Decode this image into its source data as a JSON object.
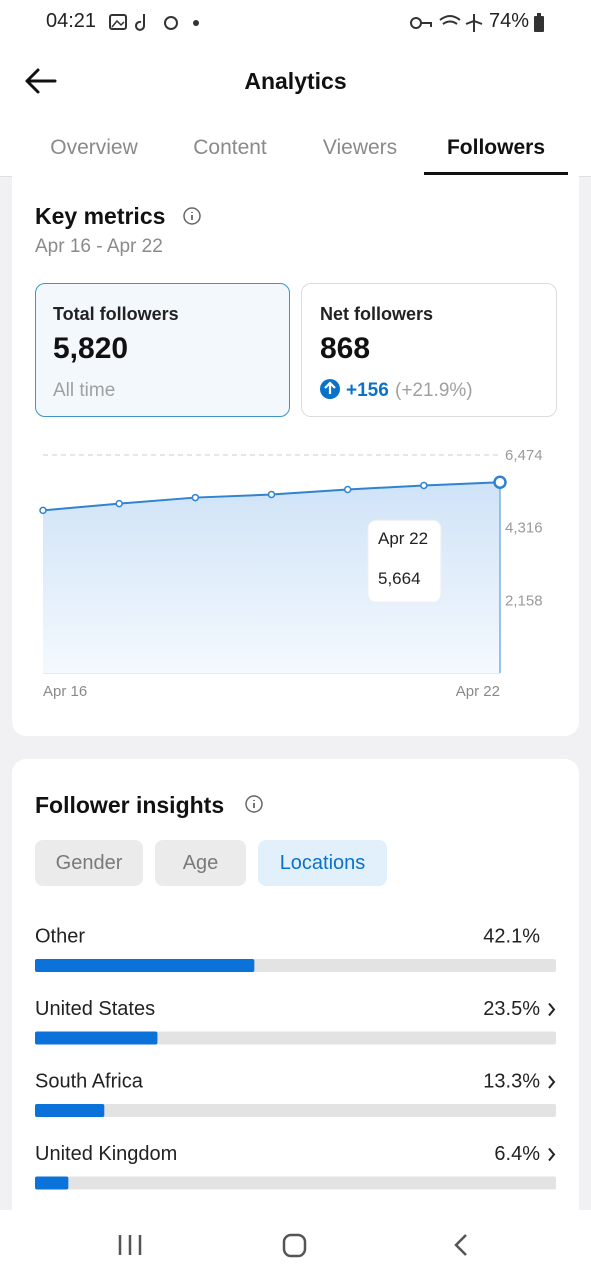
{
  "status_bar": {
    "time": "04:21",
    "battery": "74%"
  },
  "header": {
    "title": "Analytics"
  },
  "tabs": [
    {
      "label": "Overview",
      "active": false
    },
    {
      "label": "Content",
      "active": false
    },
    {
      "label": "Viewers",
      "active": false
    },
    {
      "label": "Followers",
      "active": true
    }
  ],
  "key_metrics": {
    "title": "Key metrics",
    "date_range": "Apr 16 - Apr 22",
    "total_followers": {
      "label": "Total followers",
      "value": "5,820",
      "note": "All time"
    },
    "net_followers": {
      "label": "Net followers",
      "value": "868",
      "change": "+156",
      "change_pct": "(+21.9%)"
    }
  },
  "chart_data": {
    "type": "line",
    "x": [
      "Apr 16",
      null,
      null,
      null,
      null,
      null,
      "Apr 22"
    ],
    "values": [
      4830,
      5030,
      5210,
      5300,
      5450,
      5570,
      5664
    ],
    "value_labels": [
      null,
      null,
      null,
      null,
      null,
      null,
      "5,664"
    ],
    "color": "#2f83d0",
    "ylim": [
      0,
      6474
    ],
    "yticks": [
      {
        "value": 2158,
        "label": "2,158"
      },
      {
        "value": 4316,
        "label": "4,316"
      },
      {
        "value": 6474,
        "label": "6,474"
      }
    ],
    "grid": true
  },
  "follower_insights": {
    "title": "Follower insights",
    "filters": [
      {
        "label": "Gender",
        "selected": false
      },
      {
        "label": "Age",
        "selected": false
      },
      {
        "label": "Locations",
        "selected": true
      }
    ],
    "locations": {
      "type": "bar",
      "categories": [
        "Other",
        "United States",
        "South Africa",
        "United Kingdom"
      ],
      "values": [
        42.1,
        23.5,
        13.3,
        6.4
      ],
      "value_labels": [
        "42.1%",
        "23.5%",
        "13.3%",
        "6.4%"
      ],
      "has_detail": [
        false,
        true,
        true,
        true
      ],
      "xlim": [
        0,
        100
      ],
      "color": "#0b72d9"
    }
  }
}
